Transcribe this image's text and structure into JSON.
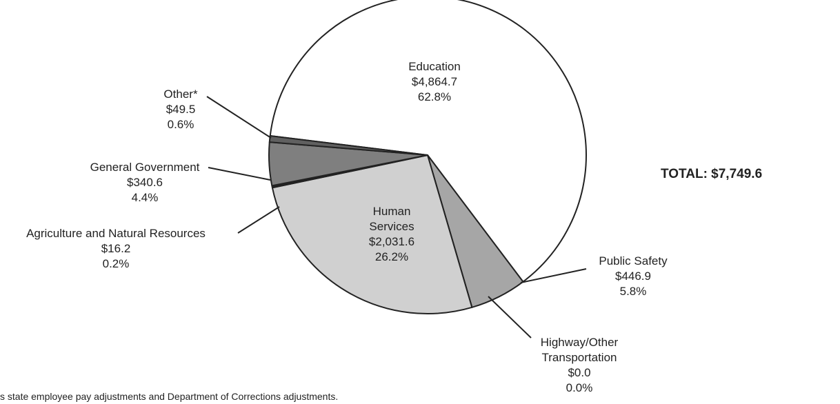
{
  "chart_data": {
    "type": "pie",
    "categories": [
      "Education",
      "Public Safety",
      "Highway/Other\nTransportation",
      "Human\nServices",
      "Agriculture and Natural Resources",
      "General Government",
      "Other*"
    ],
    "values": [
      4864.7,
      446.9,
      0.0,
      2031.6,
      16.2,
      340.6,
      49.5
    ],
    "value_labels": [
      "$4,864.7",
      "$446.9",
      "$0.0",
      "$2,031.6",
      "$16.2",
      "$340.6",
      "$49.5"
    ],
    "percents": [
      62.8,
      5.8,
      0.0,
      26.2,
      0.2,
      4.4,
      0.6
    ],
    "percent_labels": [
      "62.8%",
      "5.8%",
      "0.0%",
      "26.2%",
      "0.2%",
      "4.4%",
      "0.6%"
    ],
    "colors": [
      "#ffffff",
      "#a6a6a6",
      "#ffffff",
      "#d0d0d0",
      "#222222",
      "#7f7f7f",
      "#606060"
    ],
    "total_label": "TOTAL: $7,749.6",
    "footnote": "s state employee pay adjustments and Department of Corrections adjustments."
  }
}
